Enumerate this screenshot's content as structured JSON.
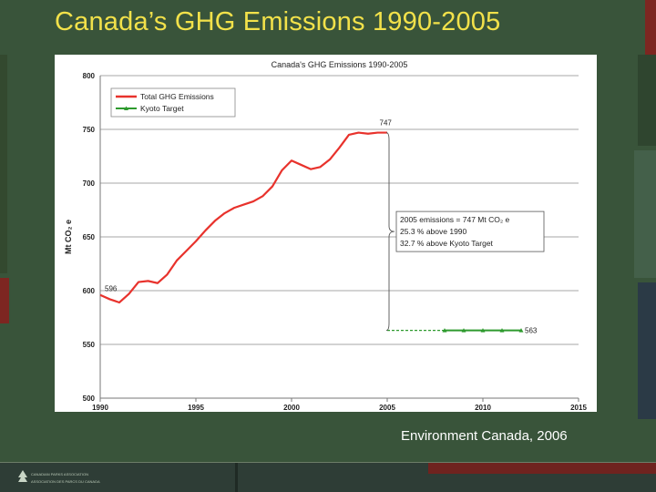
{
  "slide": {
    "title": "Canada’s GHG Emissions 1990-2005",
    "credit": "Environment Canada, 2006",
    "footer_org_en": "CANADIAN PARKS ASSOCIATION",
    "footer_org_fr": "ASSOCIATION DES PARCS DU CANADA",
    "colors": {
      "background": "#39543a",
      "title": "#f2e14a",
      "accent_red": "#8c2a22"
    }
  },
  "chart_data": {
    "type": "line",
    "title": "Canada's GHG Emissions 1990-2005",
    "xlabel": "",
    "ylabel": "Mt CO₂ e",
    "xlim": [
      1990,
      2015
    ],
    "ylim": [
      500,
      800
    ],
    "xticks": [
      1990,
      1995,
      2000,
      2005,
      2010,
      2015
    ],
    "yticks": [
      500,
      550,
      600,
      650,
      700,
      750,
      800
    ],
    "grid": true,
    "legend_position": "top-left",
    "series": [
      {
        "name": "Total GHG Emissions",
        "color": "#e8322c",
        "x": [
          1990,
          1990.5,
          1991,
          1991.5,
          1992,
          1992.5,
          1993,
          1993.5,
          1994,
          1994.5,
          1995,
          1995.5,
          1996,
          1996.5,
          1997,
          1997.5,
          1998,
          1998.5,
          1999,
          1999.5,
          2000,
          2000.5,
          2001,
          2001.5,
          2002,
          2002.5,
          2003,
          2003.5,
          2004,
          2004.5,
          2005
        ],
        "values": [
          596,
          592,
          589,
          597,
          608,
          609,
          607,
          615,
          628,
          637,
          646,
          656,
          665,
          672,
          677,
          680,
          683,
          688,
          697,
          712,
          721,
          717,
          713,
          715,
          722,
          733,
          745,
          747,
          746,
          747,
          747
        ]
      },
      {
        "name": "Kyoto Target",
        "color": "#2e9a2e",
        "x": [
          2008,
          2009,
          2010,
          2011,
          2012
        ],
        "values": [
          563,
          563,
          563,
          563,
          563
        ]
      }
    ],
    "annotations": {
      "start_label": "596",
      "peak_label": "747",
      "target_label": "563",
      "callout_lines": [
        "2005 emissions = 747 Mt CO₂ e",
        "25.3 % above 1990",
        "32.7 % above Kyoto Target"
      ]
    }
  }
}
